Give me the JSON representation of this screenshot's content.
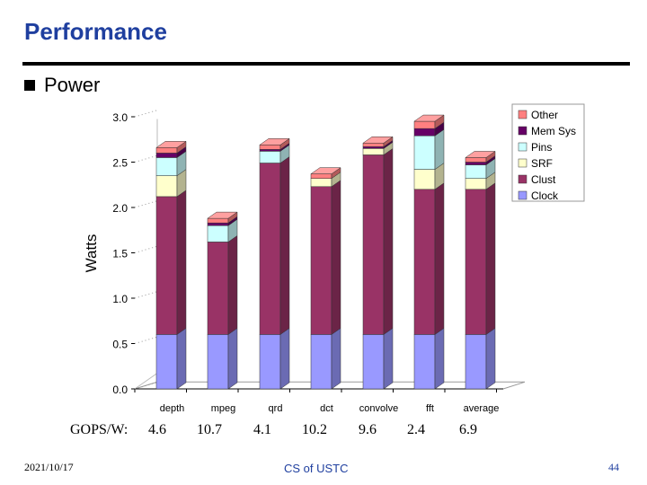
{
  "slide": {
    "title": "Performance",
    "bullet": "Power",
    "footer_date": "2021/10/17",
    "footer_center": "CS of USTC",
    "page_number": "44"
  },
  "gops": {
    "label": "GOPS/W:",
    "values": [
      "4.6",
      "10.7",
      "4.1",
      "10.2",
      "9.6",
      "2.4",
      "6.9"
    ]
  },
  "colors": {
    "title": "#1f3f9f",
    "Clock": "#9999ff",
    "Clust": "#993366",
    "SRF": "#ffffcc",
    "Pins": "#ccffff",
    "Mem Sys": "#660066",
    "Other": "#ff8080"
  },
  "chart_data": {
    "type": "bar",
    "stacked": true,
    "ylabel": "Watts",
    "ylim": [
      0,
      3.0
    ],
    "yticks": [
      "0.0",
      "0.5",
      "1.0",
      "1.5",
      "2.0",
      "2.5",
      "3.0"
    ],
    "categories": [
      "depth",
      "mpeg",
      "qrd",
      "dct",
      "convolve",
      "fft",
      "average"
    ],
    "legend_position": "top-right",
    "series": [
      {
        "name": "Clock",
        "values": [
          0.6,
          0.6,
          0.6,
          0.6,
          0.6,
          0.6,
          0.6
        ]
      },
      {
        "name": "Clust",
        "values": [
          1.52,
          1.02,
          1.89,
          1.63,
          1.98,
          1.6,
          1.6
        ]
      },
      {
        "name": "SRF",
        "values": [
          0.23,
          0.0,
          0.0,
          0.09,
          0.07,
          0.22,
          0.12
        ]
      },
      {
        "name": "Pins",
        "values": [
          0.2,
          0.18,
          0.13,
          0.0,
          0.0,
          0.37,
          0.15
        ]
      },
      {
        "name": "Mem Sys",
        "values": [
          0.05,
          0.03,
          0.02,
          0.0,
          0.02,
          0.08,
          0.03
        ]
      },
      {
        "name": "Other",
        "values": [
          0.06,
          0.05,
          0.05,
          0.05,
          0.04,
          0.08,
          0.05
        ]
      }
    ],
    "legend_order": [
      "Other",
      "Mem Sys",
      "Pins",
      "SRF",
      "Clust",
      "Clock"
    ]
  }
}
